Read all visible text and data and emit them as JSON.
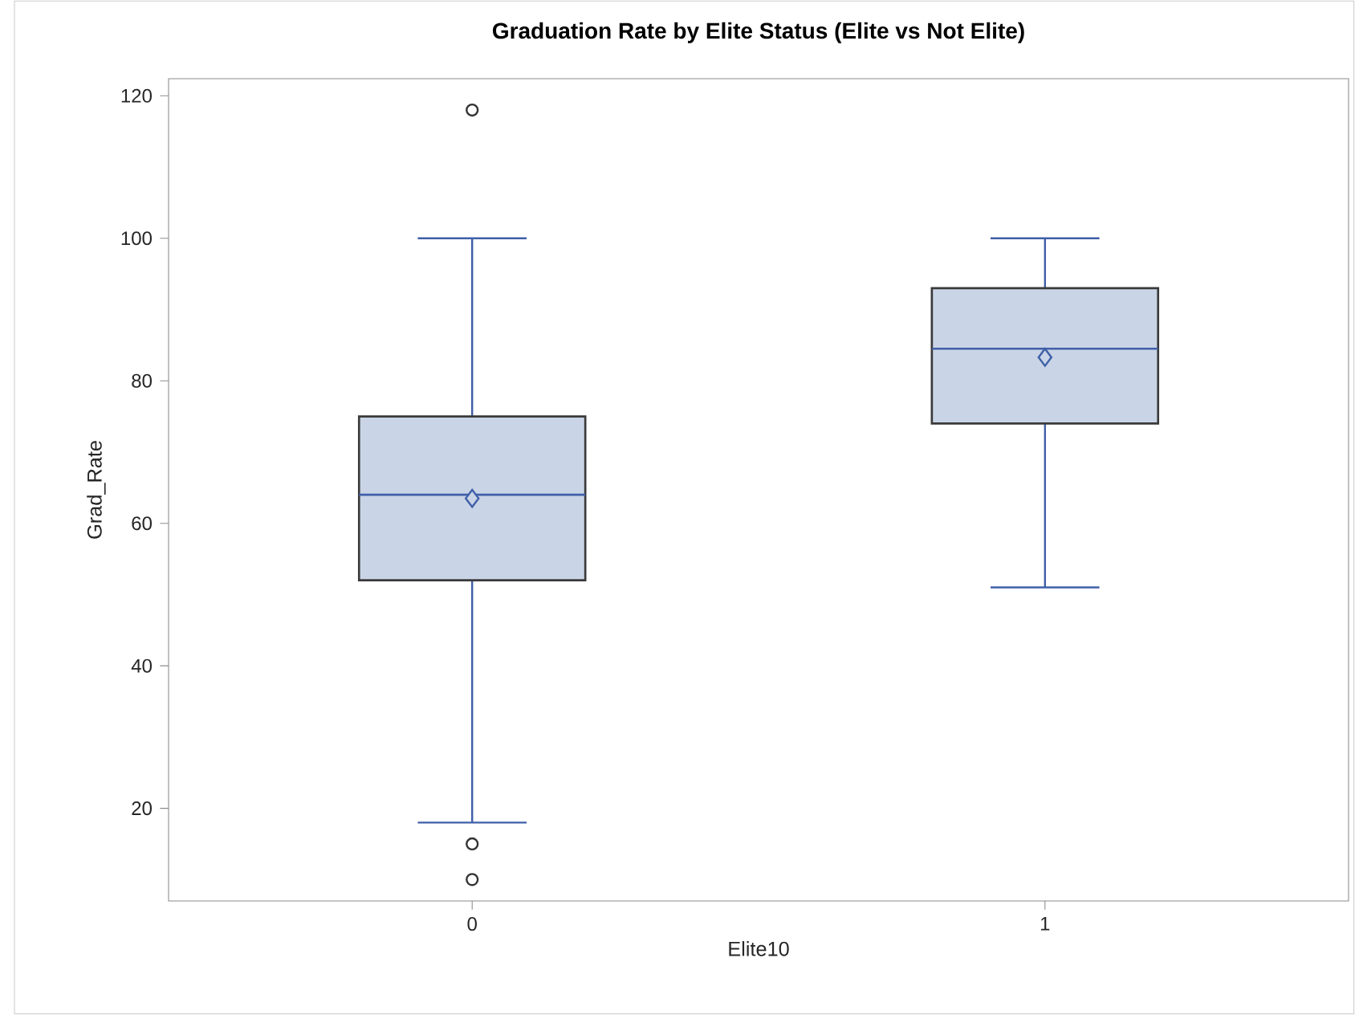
{
  "chart_data": {
    "type": "box",
    "title": "Graduation Rate by Elite Status (Elite vs Not Elite)",
    "xlabel": "Elite10",
    "ylabel": "Grad_Rate",
    "categories": [
      "0",
      "1"
    ],
    "boxes": [
      {
        "low": 18,
        "q1": 52,
        "median": 64,
        "q3": 75,
        "high": 100,
        "mean": 63.5,
        "outliers": [
          118,
          15,
          10
        ]
      },
      {
        "low": 51,
        "q1": 74,
        "median": 84.5,
        "q3": 93,
        "high": 100,
        "mean": 83.3
      }
    ],
    "color": "#c9d4e6",
    "ylim": [
      7,
      122.4
    ],
    "yticks": [
      20,
      40,
      60,
      80,
      100,
      120
    ]
  }
}
